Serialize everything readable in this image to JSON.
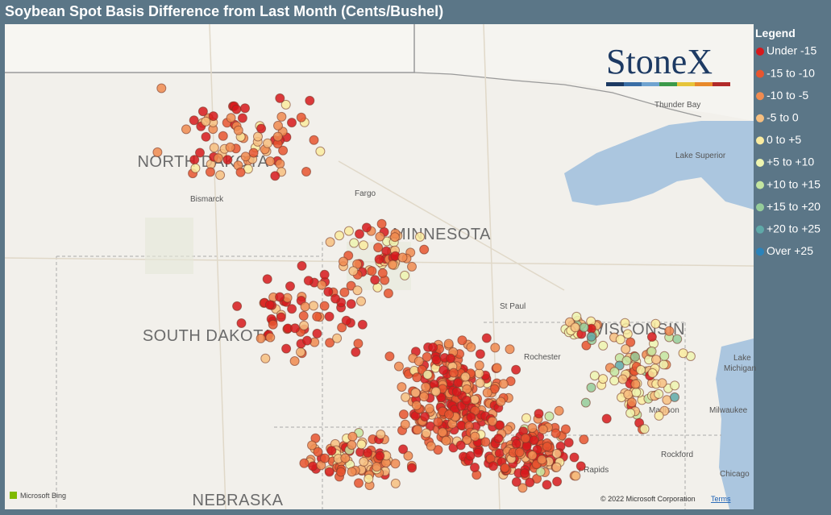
{
  "header": {
    "title": "Soybean Spot Basis Difference from Last Month (Cents/Bushel)"
  },
  "legend": {
    "title": "Legend",
    "items": [
      {
        "label": "Under -15",
        "color": "#d7191c"
      },
      {
        "label": "-15 to -10",
        "color": "#e8552f"
      },
      {
        "label": "-10 to -5",
        "color": "#f08b50"
      },
      {
        "label": "-5 to 0",
        "color": "#f7bf80"
      },
      {
        "label": "0 to +5",
        "color": "#faeca0"
      },
      {
        "label": "+5 to +10",
        "color": "#eef5b0"
      },
      {
        "label": "+10 to +15",
        "color": "#c4e5a0"
      },
      {
        "label": "+15 to +20",
        "color": "#95cc9a"
      },
      {
        "label": "+20 to +25",
        "color": "#5fa9a8"
      },
      {
        "label": "Over +25",
        "color": "#2b83ba"
      }
    ]
  },
  "logo": "StoneX",
  "map": {
    "regions": [
      "NORTH DAKOTA",
      "SOUTH DAKOTA",
      "MINNESOTA",
      "WISCONSIN",
      "NEBRASKA"
    ],
    "places": [
      "Bismarck",
      "Fargo",
      "St Paul",
      "Rochester",
      "Thunder Bay",
      "Lake Superior",
      "Lake",
      "Michigan",
      "Madison",
      "Milwaukee",
      "Rockford",
      "Chicago",
      "r Rapids"
    ],
    "attribution": "Microsoft Bing",
    "copyright": "© 2022 Microsoft Corporation",
    "terms": "Terms"
  }
}
